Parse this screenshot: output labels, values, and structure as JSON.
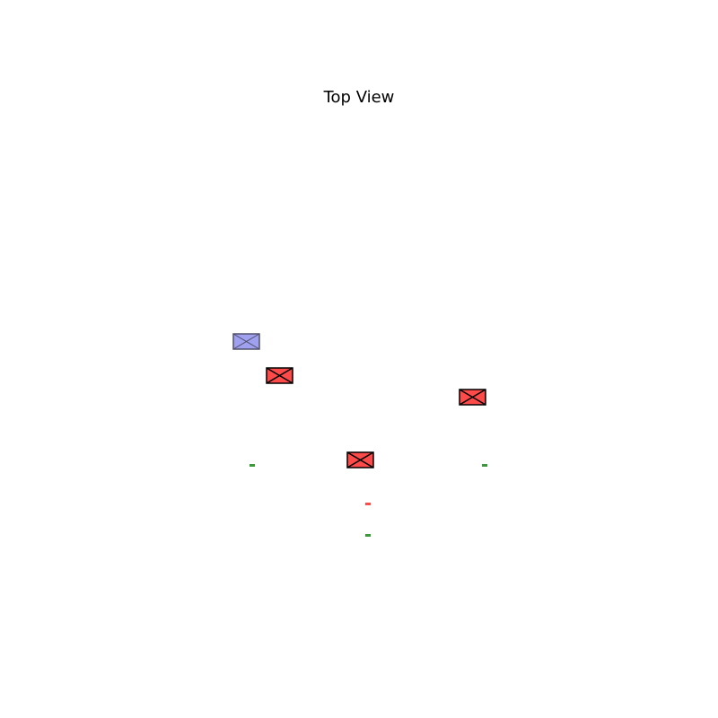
{
  "title": "Top View",
  "colors": {
    "crate_fill": "#ff4a4a",
    "crate_edge": "#000000",
    "highlight_fill": "#a0a0f0",
    "highlight_edge": "#50506a",
    "green_marker": "#3a9a3a",
    "red_marker": "#ff4a4a"
  },
  "scene": {
    "objects": [
      {
        "kind": "highlighted-box",
        "icon": "crossed-box-icon"
      },
      {
        "kind": "box",
        "icon": "crossed-box-icon"
      },
      {
        "kind": "box",
        "icon": "crossed-box-icon"
      },
      {
        "kind": "box",
        "icon": "crossed-box-icon"
      }
    ],
    "markers": [
      {
        "color": "green"
      },
      {
        "color": "green"
      },
      {
        "color": "red"
      },
      {
        "color": "green"
      }
    ]
  }
}
